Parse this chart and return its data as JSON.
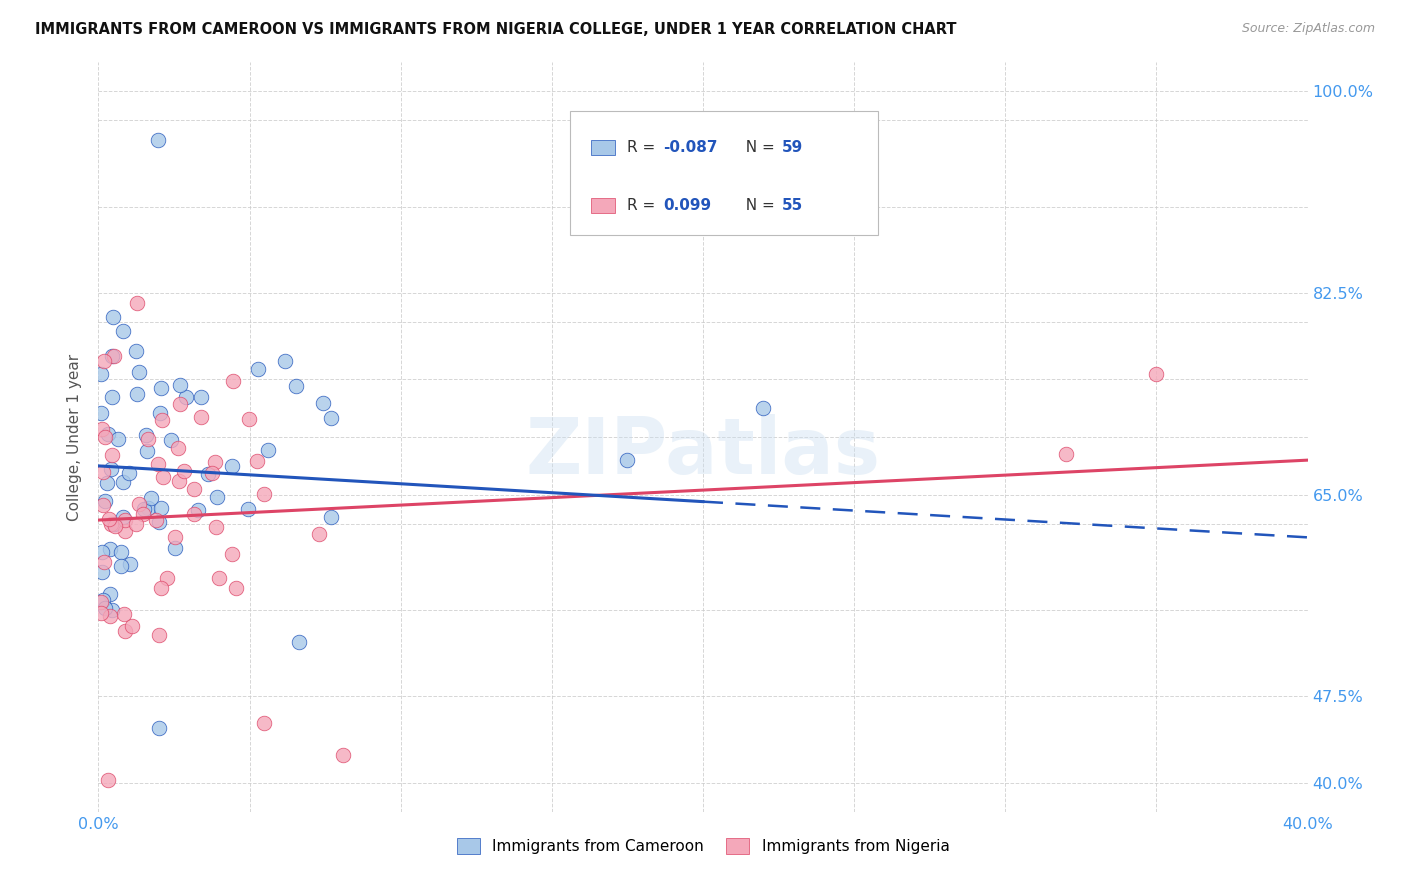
{
  "title": "IMMIGRANTS FROM CAMEROON VS IMMIGRANTS FROM NIGERIA COLLEGE, UNDER 1 YEAR CORRELATION CHART",
  "source": "Source: ZipAtlas.com",
  "ylabel": "College, Under 1 year",
  "xlim": [
    0.0,
    0.4
  ],
  "ylim": [
    0.375,
    1.025
  ],
  "right_ytick_labels": [
    "100.0%",
    "82.5%",
    "65.0%",
    "47.5%",
    "40.0%"
  ],
  "right_ytick_vals": [
    1.0,
    0.825,
    0.65,
    0.475,
    0.4
  ],
  "color_cameroon": "#a8c8e8",
  "color_nigeria": "#f4a8ba",
  "color_blue_line": "#2255bb",
  "color_pink_line": "#dd4466",
  "color_axis_labels": "#4499ee",
  "watermark": "ZIPatlas",
  "cam_R": -0.087,
  "nig_R": 0.099,
  "cam_N": 59,
  "nig_N": 55,
  "cam_intercept": 0.675,
  "cam_slope": -0.155,
  "nig_intercept": 0.628,
  "nig_slope": 0.13
}
